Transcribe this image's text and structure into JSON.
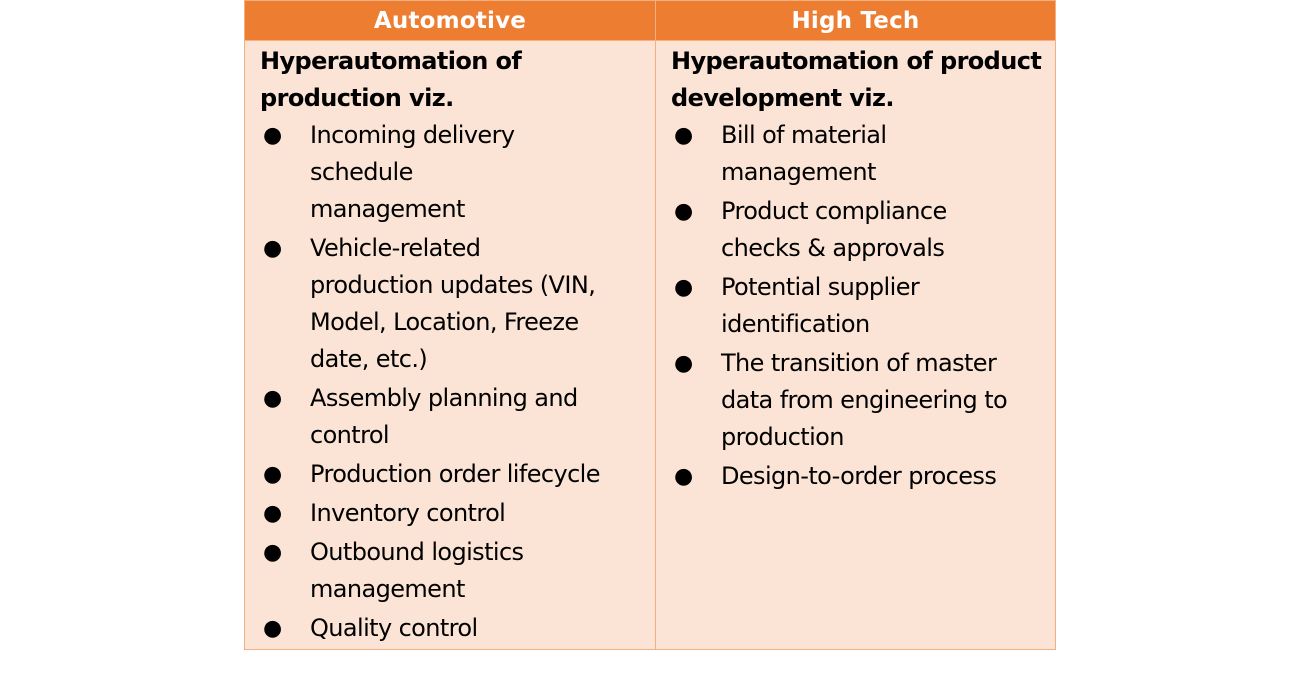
{
  "table": {
    "columns": [
      {
        "header": "Automotive",
        "intro_line1": "Hyperautomation of",
        "intro_line2": "production viz.",
        "items": [
          "Incoming delivery schedule management",
          "Vehicle-related production updates (VIN, Model, Location, Freeze date, etc.)",
          "Assembly planning and control",
          "Production order lifecycle",
          "Inventory control",
          "Outbound logistics management",
          "Quality control"
        ]
      },
      {
        "header": "High Tech",
        "intro_line1": "Hyperautomation of product",
        "intro_line2": "development viz.",
        "items": [
          "Bill of material management",
          "Product compliance checks & approvals",
          "Potential supplier identification",
          "The transition of master data from engineering to production",
          "Design-to-order process"
        ]
      }
    ]
  },
  "colors": {
    "header_bg": "#ed7d31",
    "cell_bg": "#fbe4d5",
    "border": "#f4b083"
  }
}
